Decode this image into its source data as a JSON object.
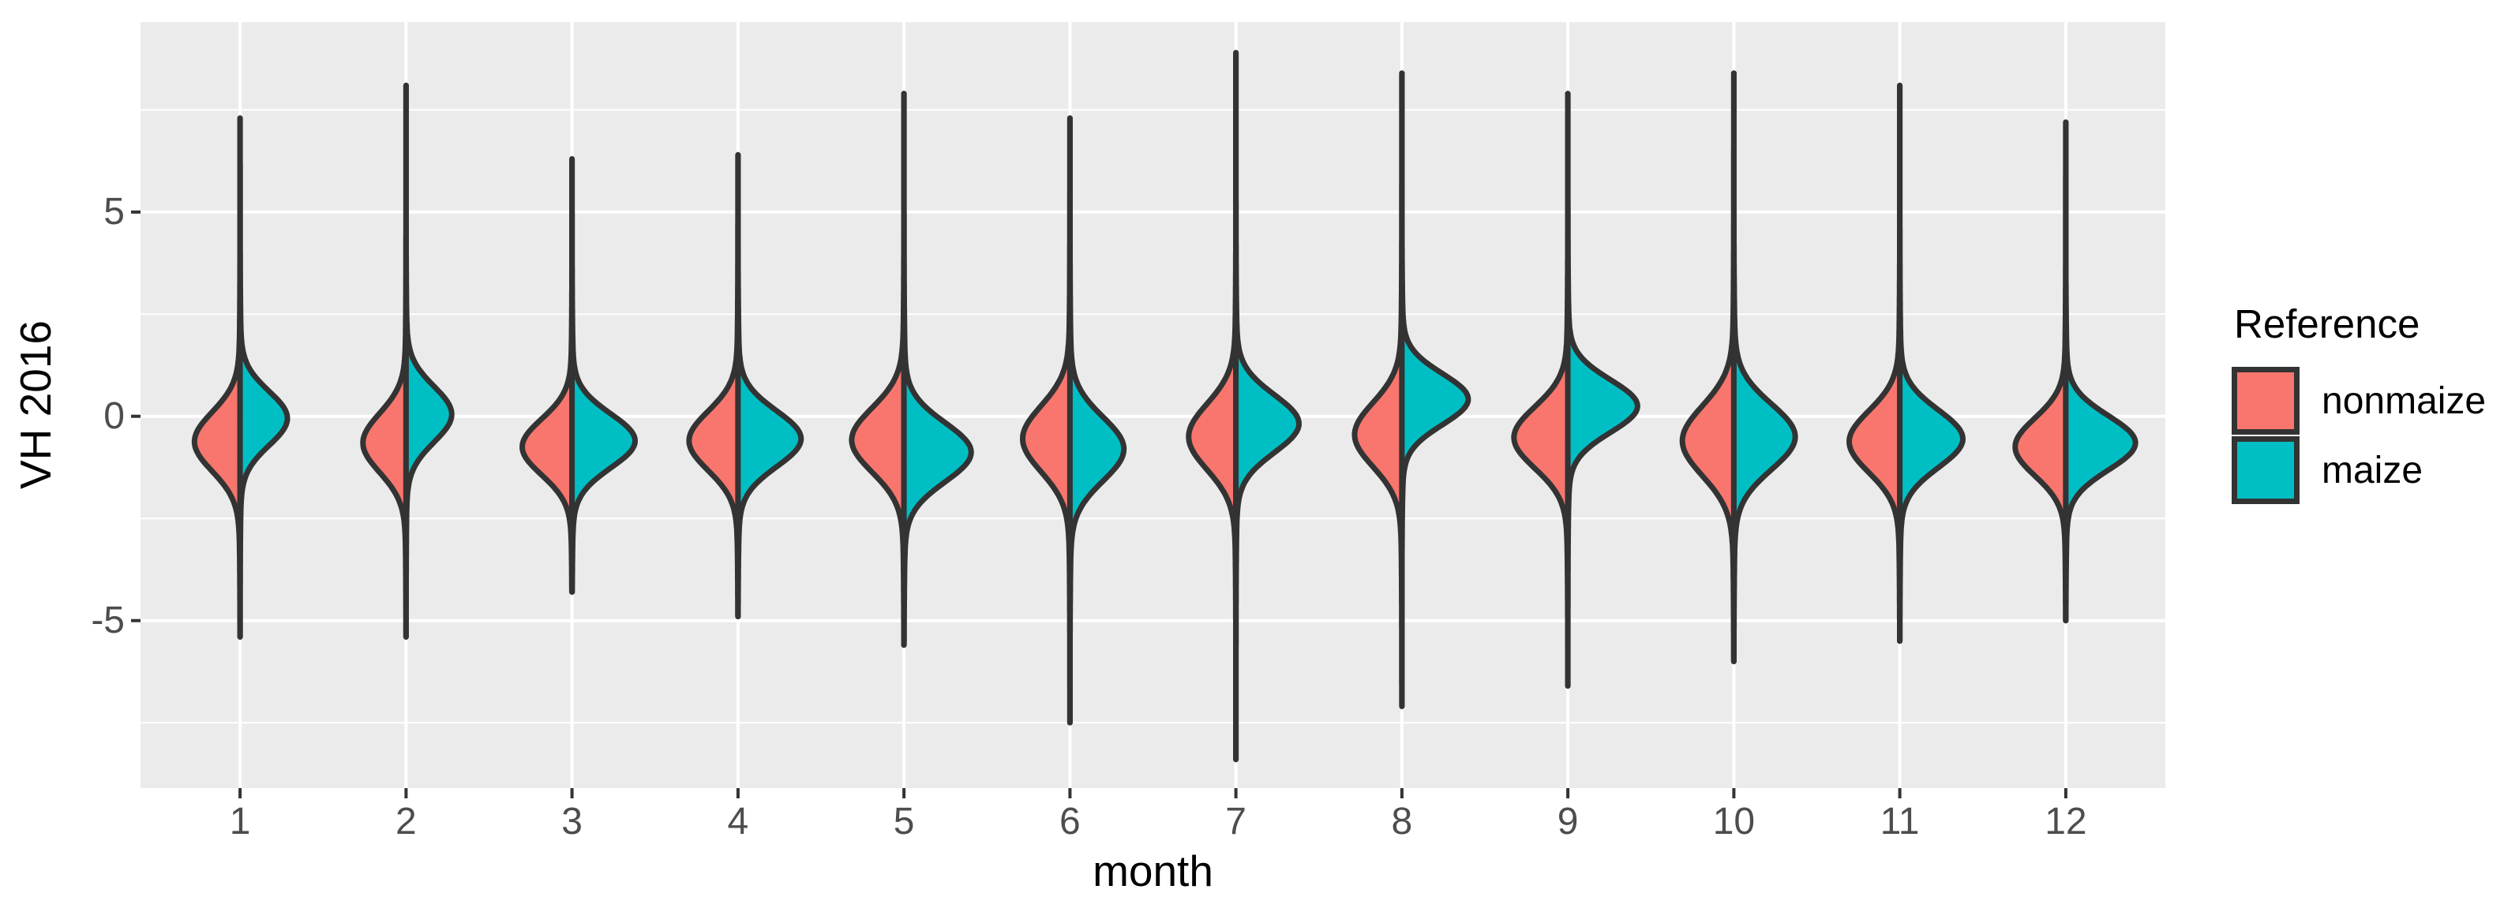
{
  "chart_data": {
    "type": "violin",
    "variant": "split-violin",
    "title": "",
    "xlabel": "month",
    "ylabel": "VH 2016",
    "categories": [
      "1",
      "2",
      "3",
      "4",
      "5",
      "6",
      "7",
      "8",
      "9",
      "10",
      "11",
      "12"
    ],
    "grid": true,
    "y_axis": {
      "lim": [
        -9.1,
        9.65
      ],
      "ticks": [
        {
          "value": 5,
          "label": "5"
        },
        {
          "value": 0,
          "label": "0"
        },
        {
          "value": -5,
          "label": "-5"
        }
      ],
      "minor": [
        7.5,
        2.5,
        -2.5,
        -7.5
      ]
    },
    "legend": {
      "title": "Reference",
      "position": "right",
      "entries": [
        {
          "label": "nonmaize",
          "color": "#F8766D"
        },
        {
          "label": "maize",
          "color": "#00BFC4"
        }
      ]
    },
    "colors": {
      "nonmaize": "#F8766D",
      "maize": "#00BFC4",
      "outline": "#333333",
      "panel_bg": "#EBEBEB",
      "grid": "#FFFFFF",
      "tick_text": "#4D4D4D",
      "title_text": "#000000"
    },
    "series": [
      {
        "name": "nonmaize",
        "side": "left",
        "color": "#F8766D",
        "violins": [
          {
            "month": "1",
            "min": -5.4,
            "max": 7.3,
            "mode": -0.62,
            "sigma": 0.72,
            "width": 0.55
          },
          {
            "month": "2",
            "min": -5.4,
            "max": 8.1,
            "mode": -0.65,
            "sigma": 0.72,
            "width": 0.52
          },
          {
            "month": "3",
            "min": -4.3,
            "max": 6.3,
            "mode": -0.75,
            "sigma": 0.68,
            "width": 0.6
          },
          {
            "month": "4",
            "min": -4.9,
            "max": 6.4,
            "mode": -0.6,
            "sigma": 0.72,
            "width": 0.59
          },
          {
            "month": "5",
            "min": -5.6,
            "max": 7.9,
            "mode": -0.58,
            "sigma": 0.78,
            "width": 0.63
          },
          {
            "month": "6",
            "min": -7.5,
            "max": 7.3,
            "mode": -0.55,
            "sigma": 0.8,
            "width": 0.57
          },
          {
            "month": "7",
            "min": -8.4,
            "max": 8.9,
            "mode": -0.5,
            "sigma": 0.8,
            "width": 0.57
          },
          {
            "month": "8",
            "min": -7.1,
            "max": 8.4,
            "mode": -0.45,
            "sigma": 0.78,
            "width": 0.57
          },
          {
            "month": "9",
            "min": -6.6,
            "max": 7.9,
            "mode": -0.52,
            "sigma": 0.75,
            "width": 0.65
          },
          {
            "month": "10",
            "min": -6.0,
            "max": 8.4,
            "mode": -0.6,
            "sigma": 0.85,
            "width": 0.62
          },
          {
            "month": "11",
            "min": -5.5,
            "max": 8.1,
            "mode": -0.62,
            "sigma": 0.75,
            "width": 0.61
          },
          {
            "month": "12",
            "min": -5.0,
            "max": 7.2,
            "mode": -0.75,
            "sigma": 0.7,
            "width": 0.61
          }
        ]
      },
      {
        "name": "maize",
        "side": "right",
        "color": "#00BFC4",
        "violins": [
          {
            "month": "1",
            "min": -5.4,
            "max": 7.3,
            "mode": -0.05,
            "sigma": 0.66,
            "width": 0.57
          },
          {
            "month": "2",
            "min": -5.4,
            "max": 8.1,
            "mode": 0.05,
            "sigma": 0.68,
            "width": 0.55
          },
          {
            "month": "3",
            "min": -4.3,
            "max": 6.3,
            "mode": -0.6,
            "sigma": 0.66,
            "width": 0.76
          },
          {
            "month": "4",
            "min": -4.9,
            "max": 6.4,
            "mode": -0.55,
            "sigma": 0.68,
            "width": 0.76
          },
          {
            "month": "5",
            "min": -5.6,
            "max": 7.9,
            "mode": -0.88,
            "sigma": 0.72,
            "width": 0.81
          },
          {
            "month": "6",
            "min": -7.5,
            "max": 7.3,
            "mode": -0.8,
            "sigma": 0.78,
            "width": 0.65
          },
          {
            "month": "7",
            "min": -8.4,
            "max": 8.9,
            "mode": -0.18,
            "sigma": 0.7,
            "width": 0.76
          },
          {
            "month": "8",
            "min": -7.1,
            "max": 8.4,
            "mode": 0.42,
            "sigma": 0.62,
            "width": 0.8
          },
          {
            "month": "9",
            "min": -6.6,
            "max": 7.9,
            "mode": 0.25,
            "sigma": 0.64,
            "width": 0.84
          },
          {
            "month": "10",
            "min": -6.0,
            "max": 8.4,
            "mode": -0.5,
            "sigma": 0.8,
            "width": 0.74
          },
          {
            "month": "11",
            "min": -5.5,
            "max": 8.1,
            "mode": -0.55,
            "sigma": 0.7,
            "width": 0.76
          },
          {
            "month": "12",
            "min": -5.0,
            "max": 7.2,
            "mode": -0.65,
            "sigma": 0.66,
            "width": 0.84
          }
        ]
      }
    ]
  }
}
